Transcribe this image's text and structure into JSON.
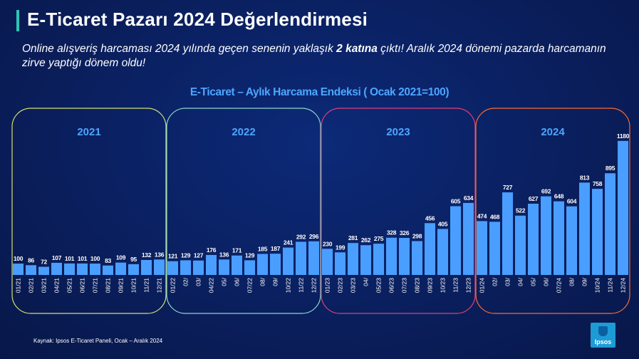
{
  "header": {
    "title": "E-Ticaret Pazarı 2024 Değerlendirmesi",
    "subtitle_before": "Online alışveriş harcaması 2024 yılında geçen senenin yaklaşık ",
    "subtitle_bold": "2 katına",
    "subtitle_after": " çıktı! Aralık 2024 dönemi pazarda harcamanın zirve yaptığı dönem oldu!"
  },
  "footer": {
    "source": "Kaynak: Ipsos E-Ticaret Paneli, Ocak – Aralık 2024",
    "logo_text": "Ipsos"
  },
  "colors": {
    "bar": "#4a9eff",
    "title_accent": "#2ec4b6",
    "chart_title": "#4da6ff",
    "group_2021": "#d4e06a",
    "group_2022": "#8fd6cc",
    "group_2023": "#e0407a",
    "group_2024": "#ff6a2b"
  },
  "chart_data": {
    "type": "bar",
    "title": "E-Ticaret – Aylık Harcama Endeksi ( Ocak 2021=100)",
    "xlabel": "",
    "ylabel": "",
    "groups": [
      {
        "label": "2021",
        "categories": [
          "01/21",
          "02/21",
          "03/21",
          "04/21",
          "05/21",
          "06/21",
          "07/21",
          "08/21",
          "09/21",
          "10/21",
          "11/21",
          "12/21"
        ],
        "values": [
          100,
          86,
          72,
          107,
          101,
          101,
          100,
          83,
          109,
          95,
          132,
          136
        ]
      },
      {
        "label": "2022",
        "categories": [
          "01/22",
          "02/",
          "03/",
          "04/22",
          "05/",
          "06/",
          "07/22",
          "08/",
          "09/",
          "10/22",
          "11/22",
          "12/22"
        ],
        "values": [
          121,
          129,
          127,
          176,
          136,
          171,
          129,
          185,
          187,
          241,
          292,
          296
        ]
      },
      {
        "label": "2023",
        "categories": [
          "01/23",
          "02/23",
          "03/23",
          "04/",
          "05/23",
          "06/23",
          "07/23",
          "08/23",
          "09/23",
          "10/23",
          "11/23",
          "12/23"
        ],
        "values": [
          230,
          199,
          281,
          262,
          275,
          328,
          326,
          298,
          456,
          405,
          605,
          634
        ]
      },
      {
        "label": "2024",
        "categories": [
          "01/24",
          "02/",
          "03/",
          "04/",
          "05/",
          "06/",
          "07/24",
          "08/",
          "09/",
          "10/24",
          "11/24",
          "12/24"
        ],
        "values": [
          474,
          468,
          727,
          522,
          627,
          692,
          648,
          604,
          813,
          758,
          895,
          1180
        ]
      }
    ],
    "grid": false,
    "legend": "none"
  }
}
